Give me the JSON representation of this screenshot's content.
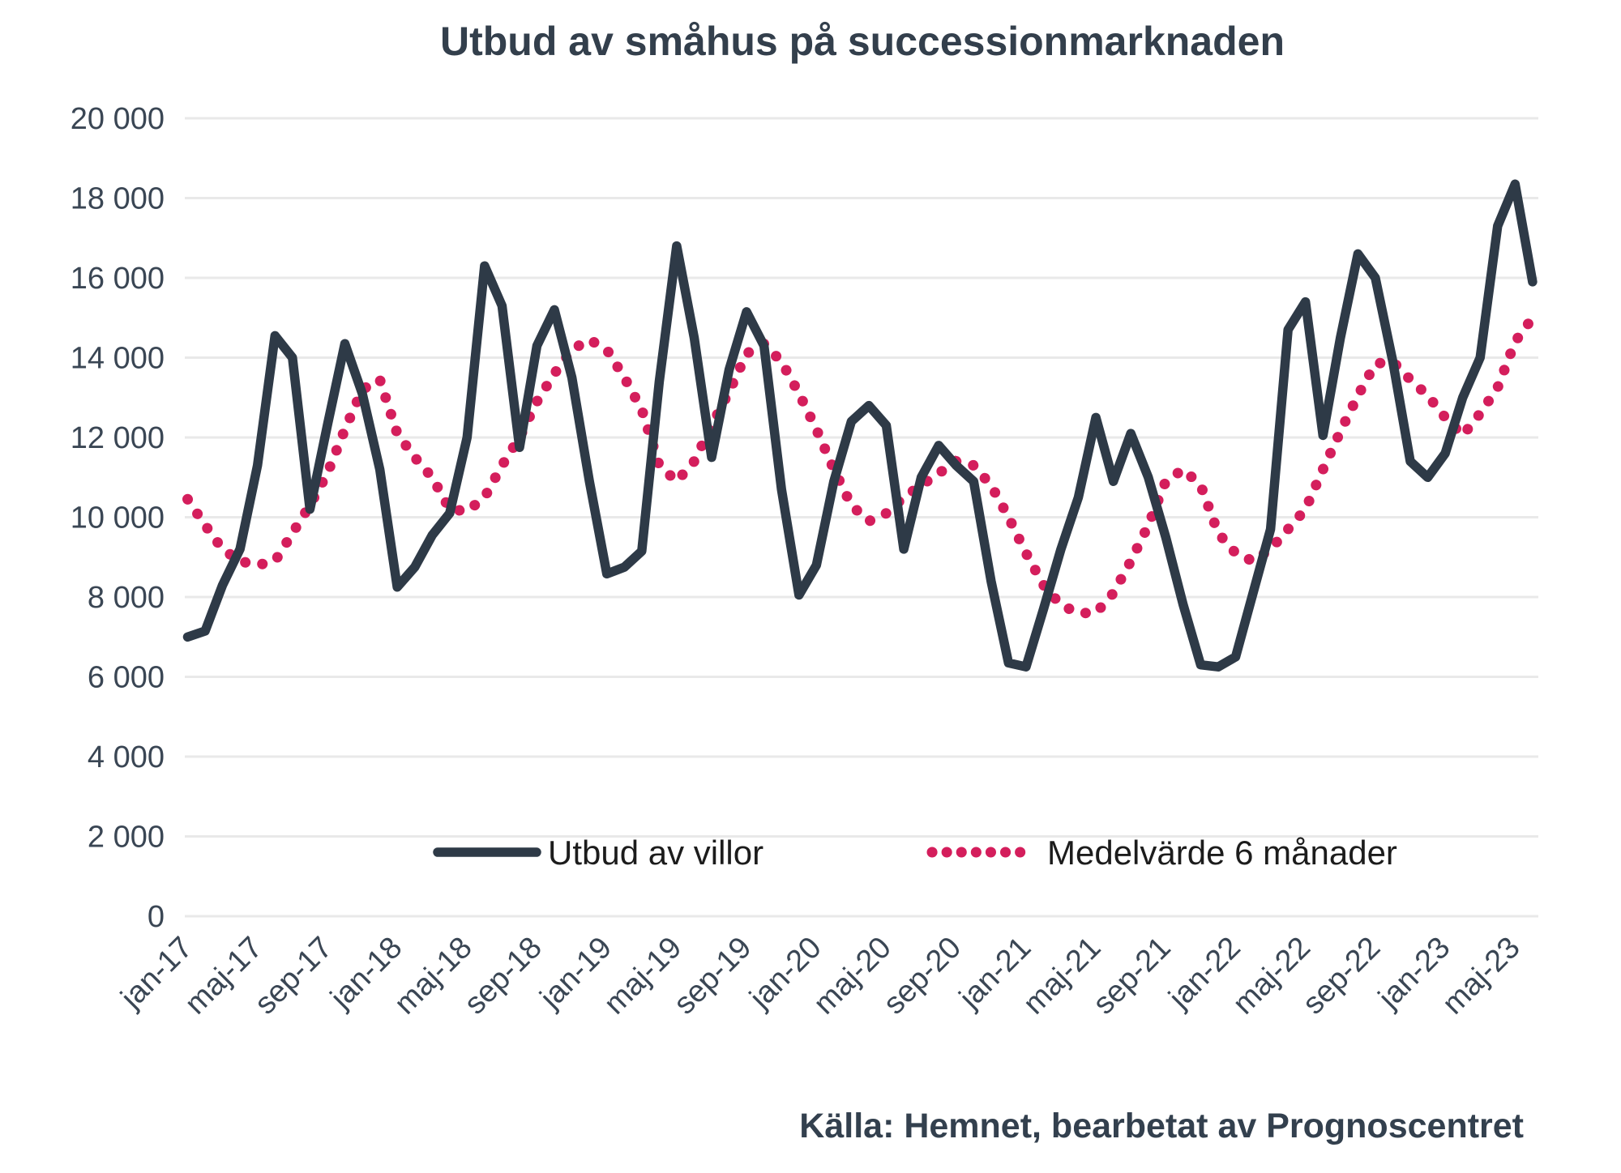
{
  "title": "Utbud av småhus på successionmarknaden",
  "source_note": "Källa: Hemnet, bearbetat av Prognoscentret",
  "legend": [
    {
      "label": "Utbud av villor",
      "color": "#2E3A47",
      "style": "solid"
    },
    {
      "label": "Medelvärde 6 månader",
      "color": "#D41E5C",
      "style": "dotted"
    }
  ],
  "colors": {
    "series_dark": "#2E3A47",
    "series_pink": "#D41E5C",
    "grid": "#E9E9E9",
    "axis_text": "#3A4654",
    "title_text": "#333F4C"
  },
  "chart_data": {
    "type": "line",
    "title": "Utbud av småhus på successionmarknaden",
    "x_tick_labels": [
      "jan-17",
      "maj-17",
      "sep-17",
      "jan-18",
      "maj-18",
      "sep-18",
      "jan-19",
      "maj-19",
      "sep-19",
      "jan-20",
      "maj-20",
      "sep-20",
      "jan-21",
      "maj-21",
      "sep-21",
      "jan-22",
      "maj-22",
      "sep-22",
      "jan-23",
      "maj-23"
    ],
    "x_tick_every_months": 4,
    "months_total": 78,
    "first_month": "jan-17",
    "last_month": "jun-23",
    "ylim": [
      0,
      20000
    ],
    "y_step": 2000,
    "y_tick_labels": [
      "0",
      "2 000",
      "4 000",
      "6 000",
      "8 000",
      "10 000",
      "12 000",
      "14 000",
      "16 000",
      "18 000",
      "20 000"
    ],
    "grid": "horizontal-only",
    "legend_position": "inside-bottom",
    "series": [
      {
        "name": "Utbud av villor",
        "style": "solid",
        "color": "#2E3A47",
        "values": [
          7000,
          7150,
          8300,
          9200,
          11300,
          14550,
          14000,
          10200,
          12300,
          14350,
          13100,
          11200,
          8250,
          8750,
          9550,
          10100,
          12000,
          16300,
          15300,
          11750,
          14300,
          15200,
          13500,
          10900,
          8580,
          8750,
          9150,
          13400,
          16800,
          14500,
          11500,
          13700,
          15150,
          14300,
          10700,
          8050,
          8800,
          10900,
          12400,
          12800,
          12300,
          9200,
          11000,
          11800,
          11300,
          10900,
          8400,
          6350,
          6250,
          7700,
          9200,
          10500,
          12500,
          10900,
          12100,
          11000,
          9500,
          7800,
          6300,
          6250,
          6500,
          8100,
          9700,
          14700,
          15400,
          12050,
          14500,
          16600,
          16000,
          13900,
          11400,
          11000,
          11600,
          13000,
          14000,
          17300,
          18350,
          15900
        ]
      },
      {
        "name": "Medelvärde 6 månader",
        "style": "dotted",
        "color": "#D41E5C",
        "values": [
          10450,
          9800,
          9200,
          8900,
          8800,
          8900,
          9600,
          10300,
          11100,
          12200,
          13200,
          13450,
          12100,
          11500,
          11000,
          10200,
          10150,
          10500,
          11300,
          12000,
          12900,
          13600,
          14200,
          14450,
          14200,
          13500,
          12700,
          11300,
          10900,
          11400,
          12300,
          13150,
          14100,
          14350,
          13900,
          13100,
          12200,
          11200,
          10300,
          9900,
          10100,
          10500,
          10800,
          11100,
          11400,
          11300,
          10800,
          10000,
          9100,
          8300,
          7800,
          7600,
          7600,
          8100,
          8900,
          9800,
          10900,
          11200,
          10800,
          9600,
          9100,
          8900,
          9200,
          9700,
          10200,
          11200,
          12150,
          13050,
          13850,
          13900,
          13450,
          13050,
          12500,
          12050,
          12600,
          13250,
          14400,
          15000
        ]
      }
    ]
  }
}
